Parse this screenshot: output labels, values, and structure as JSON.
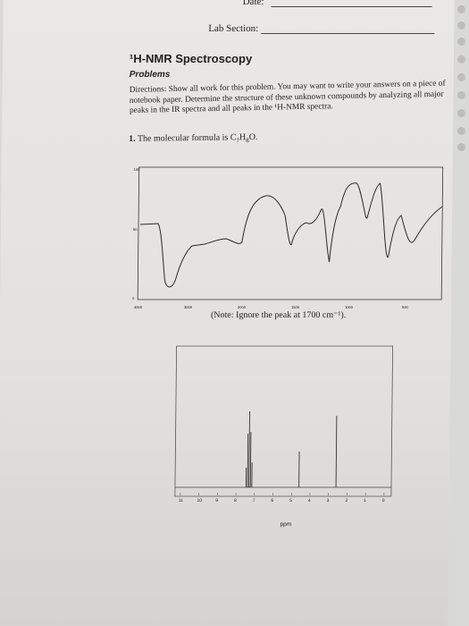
{
  "header": {
    "date_label": "Date:",
    "lab_section_label": "Lab Section:"
  },
  "title": "¹H-NMR Spectroscopy",
  "subtitle": "Problems",
  "directions": {
    "label": "Directions:",
    "text": "Show all work for this problem. You may want to write your answers on a piece of notebook paper. Determine the structure of these unknown compounds by analyzing all major peaks in the IR spectra and all peaks in the ¹H-NMR spectra."
  },
  "question": {
    "number": "1.",
    "text_prefix": "The molecular formula is C",
    "c_sub": "7",
    "h": "H",
    "h_sub": "8",
    "o": "O."
  },
  "ir_spectrum": {
    "x_ticks": [
      "4000",
      "3000",
      "2000",
      "1500",
      "1000",
      "500"
    ],
    "y_ticks": [
      "100",
      "50",
      "0"
    ],
    "note": "(Note: Ignore the peak at 1700 cm⁻¹).",
    "line_color": "#2a2a2a"
  },
  "nmr_spectrum": {
    "x_ticks": [
      "11",
      "10",
      "9",
      "8",
      "7",
      "6",
      "5",
      "4",
      "3",
      "2",
      "1",
      "0"
    ],
    "xlabel": "ppm",
    "peaks_ppm": [
      7.3,
      4.6,
      2.6
    ],
    "line_color": "#333333"
  }
}
